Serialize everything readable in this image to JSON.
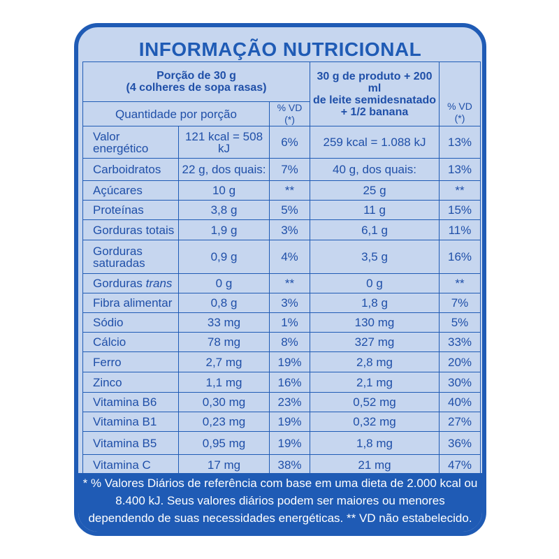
{
  "title": "INFORMAÇÃO NUTRICIONAL",
  "header": {
    "portion": "Porção de 30 g\n(4 colheres de sopa rasas)",
    "quantity": "Quantidade por porção",
    "portion_vd": "% VD (*)",
    "mixed": "30 g de produto + 200 ml\nde leite semidesnatado\n+ 1/2 banana",
    "mixed_vd": "% VD (*)"
  },
  "rows": [
    {
      "nutrient": "Valor\nenergético",
      "portion": "121 kcal = 508 kJ",
      "portion_vd": "6%",
      "mixed": "259 kcal = 1.088 kJ",
      "mixed_vd": "13%"
    },
    {
      "nutrient": "Carboidratos",
      "portion": "22 g, dos quais:",
      "portion_vd": "7%",
      "mixed": "40 g, dos quais:",
      "mixed_vd": "13%"
    },
    {
      "nutrient": "Açúcares",
      "portion": "10 g",
      "portion_vd": "**",
      "mixed": "25 g",
      "mixed_vd": "**"
    },
    {
      "nutrient": "Proteínas",
      "portion": "3,8 g",
      "portion_vd": "5%",
      "mixed": "11 g",
      "mixed_vd": "15%"
    },
    {
      "nutrient": "Gorduras totais",
      "portion": "1,9 g",
      "portion_vd": "3%",
      "mixed": "6,1 g",
      "mixed_vd": "11%"
    },
    {
      "nutrient": "Gorduras\nsaturadas",
      "portion": "0,9 g",
      "portion_vd": "4%",
      "mixed": "3,5 g",
      "mixed_vd": "16%"
    },
    {
      "nutrient": "Gorduras",
      "nutrient_italic": "trans",
      "portion": "0 g",
      "portion_vd": "**",
      "mixed": "0 g",
      "mixed_vd": "**"
    },
    {
      "nutrient": "Fibra alimentar",
      "portion": "0,8 g",
      "portion_vd": "3%",
      "mixed": "1,8 g",
      "mixed_vd": "7%"
    },
    {
      "nutrient": "Sódio",
      "portion": "33 mg",
      "portion_vd": "1%",
      "mixed": "130 mg",
      "mixed_vd": "5%"
    },
    {
      "nutrient": "Cálcio",
      "portion": "78 mg",
      "portion_vd": "8%",
      "mixed": "327 mg",
      "mixed_vd": "33%"
    },
    {
      "nutrient": "Ferro",
      "portion": "2,7 mg",
      "portion_vd": "19%",
      "mixed": "2,8 mg",
      "mixed_vd": "20%"
    },
    {
      "nutrient": "Zinco",
      "portion": "1,1 mg",
      "portion_vd": "16%",
      "mixed": "2,1 mg",
      "mixed_vd": "30%"
    },
    {
      "nutrient": "Vitamina B6",
      "portion": "0,30 mg",
      "portion_vd": "23%",
      "mixed": "0,52 mg",
      "mixed_vd": "40%"
    },
    {
      "nutrient": "Vitamina B1",
      "portion": "0,23 mg",
      "portion_vd": "19%",
      "mixed": "0,32 mg",
      "mixed_vd": "27%"
    },
    {
      "nutrient": "Vitamina B5",
      "portion": "0,95 mg",
      "portion_vd": "19%",
      "mixed": "1,8 mg",
      "mixed_vd": "36%"
    },
    {
      "nutrient": "Vitamina C",
      "portion": "17 mg",
      "portion_vd": "38%",
      "mixed": "21 mg",
      "mixed_vd": "47%"
    }
  ],
  "footnote": "* % Valores Diários de referência com base em uma dieta de 2.000 kcal ou 8.400 kJ. Seus valores diários podem ser maiores ou menores dependendo de suas necessidades energéticas. ** VD não estabelecido."
}
